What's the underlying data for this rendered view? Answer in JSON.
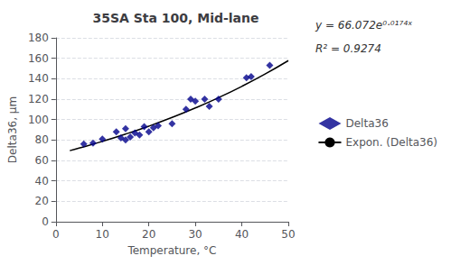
{
  "chart_data": {
    "type": "scatter",
    "title": "35SA Sta 100, Mid-lane",
    "xlabel": "Temperature, °C",
    "ylabel": "Delta36, μm",
    "annotations": [
      "y = 66.072e⁰·⁰¹⁷⁴ˣ",
      "R² = 0.9274"
    ],
    "series": [
      {
        "name": "Delta36",
        "type": "scatter",
        "marker": "diamond",
        "color": "#00008B",
        "x": [
          6,
          8,
          10,
          13,
          14,
          15,
          15,
          16,
          17,
          18,
          19,
          20,
          21,
          22,
          25,
          28,
          29,
          30,
          32,
          33,
          35,
          41,
          42,
          46
        ],
        "values": [
          76,
          77,
          81,
          88,
          82,
          80,
          91,
          83,
          87,
          85,
          93,
          88,
          92,
          94,
          96,
          110,
          120,
          118,
          120,
          113,
          120,
          141,
          142,
          153
        ]
      },
      {
        "name": "Expon. (Delta36)",
        "type": "line",
        "line_style": "solid",
        "color": "#000000",
        "x": [
          3,
          5,
          10,
          15,
          20,
          25,
          30,
          35,
          40,
          45,
          50
        ],
        "values": [
          69.61,
          72.08,
          78.63,
          85.78,
          93.57,
          102.08,
          111.36,
          121.48,
          132.52,
          144.57,
          157.71
        ]
      }
    ],
    "xlim": [
      0,
      50
    ],
    "ylim": [
      0,
      180
    ],
    "xticks": [
      0,
      10,
      20,
      30,
      40,
      50
    ],
    "yticks": [
      0,
      20,
      40,
      60,
      80,
      100,
      120,
      140,
      160,
      180
    ],
    "grid": true,
    "legend": "right"
  }
}
